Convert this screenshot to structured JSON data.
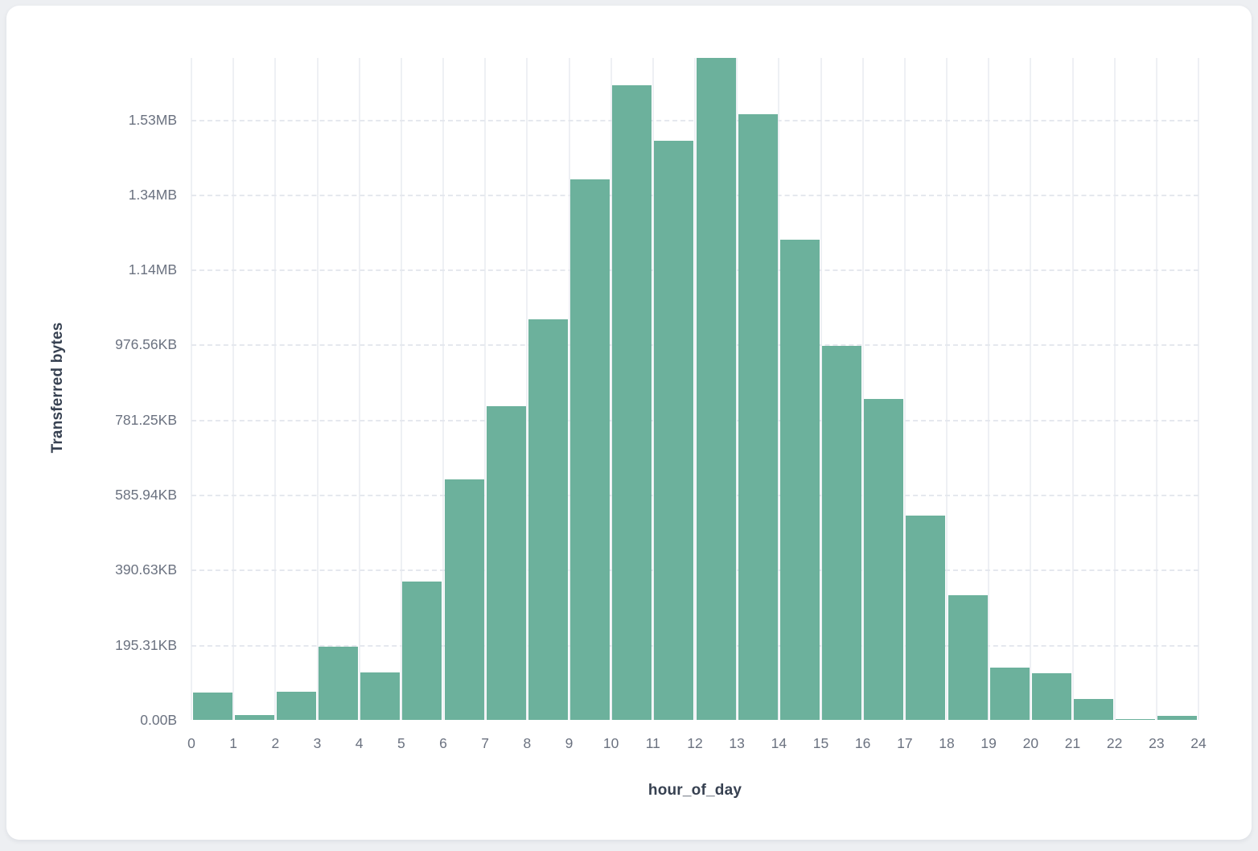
{
  "page": {
    "background_color": "#edeff2",
    "card_background_color": "#ffffff"
  },
  "chart_data": {
    "type": "bar",
    "subtype": "histogram",
    "title": "",
    "xlabel": "hour_of_day",
    "ylabel": "Transferred bytes",
    "bar_color": "#6cb19c",
    "vgrid_color": "#eef0f4",
    "hgrid_color": "#e5e8ee",
    "tick_label_color": "#6b7280",
    "axis_title_color": "#374151",
    "grid": "on",
    "legend": "none",
    "x_bin_starts": [
      0,
      1,
      2,
      3,
      4,
      5,
      6,
      7,
      8,
      9,
      10,
      11,
      12,
      13,
      14,
      15,
      16,
      17,
      18,
      19,
      20,
      21,
      22,
      23
    ],
    "values_bytes": [
      72000,
      13000,
      76000,
      196000,
      126000,
      369000,
      641000,
      836000,
      1068000,
      1441000,
      1691000,
      1543000,
      1764000,
      1613000,
      1279000,
      997000,
      856000,
      545000,
      333000,
      139000,
      125000,
      56000,
      3000,
      10000
    ],
    "x_tick_labels": [
      "0",
      "1",
      "2",
      "3",
      "4",
      "5",
      "6",
      "7",
      "8",
      "9",
      "10",
      "11",
      "12",
      "13",
      "14",
      "15",
      "16",
      "17",
      "18",
      "19",
      "20",
      "21",
      "22",
      "23",
      "24"
    ],
    "y_ticks": [
      {
        "label": "0.00B",
        "bytes": 0
      },
      {
        "label": "195.31KB",
        "bytes": 200000
      },
      {
        "label": "390.63KB",
        "bytes": 400000
      },
      {
        "label": "585.94KB",
        "bytes": 600000
      },
      {
        "label": "781.25KB",
        "bytes": 800000
      },
      {
        "label": "976.56KB",
        "bytes": 1000000
      },
      {
        "label": "1.14MB",
        "bytes": 1200000
      },
      {
        "label": "1.34MB",
        "bytes": 1400000
      },
      {
        "label": "1.53MB",
        "bytes": 1600000
      }
    ],
    "y_axis_range_bytes": [
      0,
      1764000
    ]
  }
}
